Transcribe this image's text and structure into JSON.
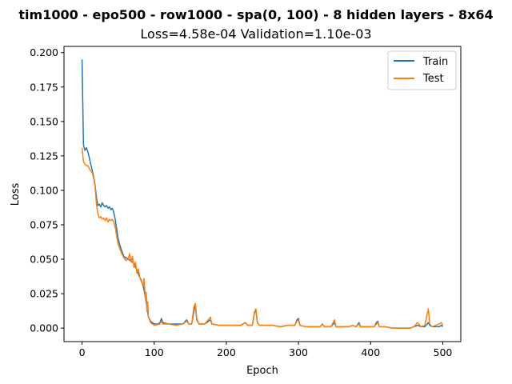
{
  "chart_data": {
    "type": "line",
    "title": "tim1000 - epo500 - row1000 - spa(0, 100) - 8 hidden layers - 8x64",
    "subtitle": "Loss=4.58e-04 Validation=1.10e-03",
    "xlabel": "Epoch",
    "ylabel": "Loss",
    "xlim": [
      -25,
      525
    ],
    "ylim": [
      -0.0098,
      0.2045
    ],
    "xticks": [
      0,
      100,
      200,
      300,
      400,
      500
    ],
    "yticks": [
      0.0,
      0.025,
      0.05,
      0.075,
      0.1,
      0.125,
      0.15,
      0.175,
      0.2
    ],
    "ytick_labels": [
      "0.000",
      "0.025",
      "0.050",
      "0.075",
      "0.100",
      "0.125",
      "0.150",
      "0.175",
      "0.200"
    ],
    "grid": false,
    "legend_position": "top-right",
    "series": [
      {
        "name": "Train",
        "color": "#1f77b4",
        "points": [
          [
            0,
            0.195
          ],
          [
            2,
            0.133
          ],
          [
            4,
            0.129
          ],
          [
            6,
            0.131
          ],
          [
            8,
            0.128
          ],
          [
            10,
            0.124
          ],
          [
            12,
            0.119
          ],
          [
            14,
            0.115
          ],
          [
            16,
            0.11
          ],
          [
            18,
            0.104
          ],
          [
            20,
            0.095
          ],
          [
            22,
            0.089
          ],
          [
            24,
            0.09
          ],
          [
            26,
            0.088
          ],
          [
            28,
            0.091
          ],
          [
            30,
            0.089
          ],
          [
            32,
            0.088
          ],
          [
            34,
            0.089
          ],
          [
            36,
            0.087
          ],
          [
            38,
            0.088
          ],
          [
            40,
            0.086
          ],
          [
            42,
            0.087
          ],
          [
            44,
            0.084
          ],
          [
            46,
            0.079
          ],
          [
            48,
            0.072
          ],
          [
            50,
            0.065
          ],
          [
            52,
            0.061
          ],
          [
            55,
            0.056
          ],
          [
            58,
            0.052
          ],
          [
            61,
            0.051
          ],
          [
            64,
            0.05
          ],
          [
            67,
            0.049
          ],
          [
            70,
            0.048
          ],
          [
            73,
            0.046
          ],
          [
            76,
            0.042
          ],
          [
            79,
            0.038
          ],
          [
            82,
            0.035
          ],
          [
            85,
            0.03
          ],
          [
            88,
            0.022
          ],
          [
            90,
            0.015
          ],
          [
            92,
            0.008
          ],
          [
            95,
            0.005
          ],
          [
            100,
            0.003
          ],
          [
            105,
            0.003
          ],
          [
            108,
            0.004
          ],
          [
            110,
            0.007
          ],
          [
            112,
            0.004
          ],
          [
            120,
            0.003
          ],
          [
            130,
            0.003
          ],
          [
            140,
            0.003
          ],
          [
            145,
            0.006
          ],
          [
            148,
            0.003
          ],
          [
            152,
            0.003
          ],
          [
            155,
            0.012
          ],
          [
            157,
            0.017
          ],
          [
            159,
            0.006
          ],
          [
            162,
            0.003
          ],
          [
            170,
            0.003
          ],
          [
            178,
            0.006
          ],
          [
            180,
            0.003
          ],
          [
            190,
            0.002
          ],
          [
            200,
            0.002
          ],
          [
            210,
            0.002
          ],
          [
            220,
            0.002
          ],
          [
            226,
            0.004
          ],
          [
            230,
            0.002
          ],
          [
            236,
            0.002
          ],
          [
            239,
            0.011
          ],
          [
            241,
            0.013
          ],
          [
            243,
            0.004
          ],
          [
            246,
            0.002
          ],
          [
            255,
            0.002
          ],
          [
            265,
            0.002
          ],
          [
            275,
            0.001
          ],
          [
            285,
            0.002
          ],
          [
            295,
            0.002
          ],
          [
            298,
            0.006
          ],
          [
            300,
            0.007
          ],
          [
            302,
            0.002
          ],
          [
            310,
            0.001
          ],
          [
            320,
            0.001
          ],
          [
            330,
            0.001
          ],
          [
            333,
            0.003
          ],
          [
            336,
            0.001
          ],
          [
            345,
            0.001
          ],
          [
            350,
            0.004
          ],
          [
            352,
            0.001
          ],
          [
            360,
            0.001
          ],
          [
            370,
            0.001
          ],
          [
            375,
            0.002
          ],
          [
            380,
            0.001
          ],
          [
            384,
            0.004
          ],
          [
            386,
            0.001
          ],
          [
            395,
            0.001
          ],
          [
            405,
            0.001
          ],
          [
            408,
            0.004
          ],
          [
            410,
            0.005
          ],
          [
            412,
            0.001
          ],
          [
            420,
            0.001
          ],
          [
            430,
            0.0
          ],
          [
            440,
            0.0
          ],
          [
            450,
            0.0
          ],
          [
            455,
            0.0
          ],
          [
            460,
            0.001
          ],
          [
            465,
            0.002
          ],
          [
            470,
            0.001
          ],
          [
            475,
            0.001
          ],
          [
            480,
            0.004
          ],
          [
            482,
            0.002
          ],
          [
            485,
            0.001
          ],
          [
            490,
            0.001
          ],
          [
            495,
            0.001
          ],
          [
            498,
            0.002
          ],
          [
            500,
            0.001
          ]
        ]
      },
      {
        "name": "Test",
        "color": "#ff7f0e",
        "points": [
          [
            0,
            0.131
          ],
          [
            2,
            0.121
          ],
          [
            4,
            0.119
          ],
          [
            6,
            0.118
          ],
          [
            8,
            0.118
          ],
          [
            10,
            0.116
          ],
          [
            12,
            0.114
          ],
          [
            14,
            0.113
          ],
          [
            16,
            0.109
          ],
          [
            18,
            0.103
          ],
          [
            20,
            0.09
          ],
          [
            22,
            0.083
          ],
          [
            24,
            0.08
          ],
          [
            26,
            0.081
          ],
          [
            28,
            0.079
          ],
          [
            30,
            0.08
          ],
          [
            32,
            0.078
          ],
          [
            34,
            0.08
          ],
          [
            36,
            0.077
          ],
          [
            38,
            0.079
          ],
          [
            40,
            0.078
          ],
          [
            42,
            0.079
          ],
          [
            44,
            0.077
          ],
          [
            46,
            0.073
          ],
          [
            48,
            0.067
          ],
          [
            50,
            0.061
          ],
          [
            52,
            0.058
          ],
          [
            55,
            0.054
          ],
          [
            58,
            0.051
          ],
          [
            61,
            0.049
          ],
          [
            64,
            0.05
          ],
          [
            66,
            0.054
          ],
          [
            68,
            0.048
          ],
          [
            70,
            0.052
          ],
          [
            72,
            0.044
          ],
          [
            74,
            0.048
          ],
          [
            76,
            0.04
          ],
          [
            78,
            0.043
          ],
          [
            80,
            0.037
          ],
          [
            82,
            0.034
          ],
          [
            85,
            0.031
          ],
          [
            86,
            0.036
          ],
          [
            88,
            0.02
          ],
          [
            89,
            0.026
          ],
          [
            90,
            0.012
          ],
          [
            91,
            0.019
          ],
          [
            92,
            0.008
          ],
          [
            95,
            0.004
          ],
          [
            100,
            0.002
          ],
          [
            108,
            0.003
          ],
          [
            110,
            0.005
          ],
          [
            112,
            0.003
          ],
          [
            120,
            0.003
          ],
          [
            130,
            0.002
          ],
          [
            140,
            0.003
          ],
          [
            145,
            0.005
          ],
          [
            148,
            0.003
          ],
          [
            152,
            0.003
          ],
          [
            155,
            0.015
          ],
          [
            157,
            0.018
          ],
          [
            159,
            0.007
          ],
          [
            162,
            0.003
          ],
          [
            170,
            0.003
          ],
          [
            178,
            0.008
          ],
          [
            180,
            0.003
          ],
          [
            190,
            0.002
          ],
          [
            200,
            0.002
          ],
          [
            210,
            0.002
          ],
          [
            220,
            0.002
          ],
          [
            226,
            0.004
          ],
          [
            230,
            0.002
          ],
          [
            236,
            0.002
          ],
          [
            239,
            0.012
          ],
          [
            241,
            0.014
          ],
          [
            243,
            0.004
          ],
          [
            246,
            0.002
          ],
          [
            255,
            0.002
          ],
          [
            265,
            0.002
          ],
          [
            275,
            0.001
          ],
          [
            285,
            0.002
          ],
          [
            295,
            0.002
          ],
          [
            298,
            0.005
          ],
          [
            300,
            0.006
          ],
          [
            302,
            0.002
          ],
          [
            310,
            0.001
          ],
          [
            320,
            0.001
          ],
          [
            330,
            0.001
          ],
          [
            333,
            0.003
          ],
          [
            336,
            0.001
          ],
          [
            345,
            0.001
          ],
          [
            350,
            0.006
          ],
          [
            352,
            0.001
          ],
          [
            360,
            0.001
          ],
          [
            370,
            0.001
          ],
          [
            375,
            0.002
          ],
          [
            380,
            0.001
          ],
          [
            384,
            0.003
          ],
          [
            386,
            0.001
          ],
          [
            395,
            0.001
          ],
          [
            405,
            0.001
          ],
          [
            408,
            0.003
          ],
          [
            410,
            0.004
          ],
          [
            412,
            0.001
          ],
          [
            420,
            0.001
          ],
          [
            430,
            0.0
          ],
          [
            440,
            0.0
          ],
          [
            450,
            0.0
          ],
          [
            455,
            0.0
          ],
          [
            460,
            0.001
          ],
          [
            465,
            0.004
          ],
          [
            470,
            0.001
          ],
          [
            475,
            0.002
          ],
          [
            480,
            0.014
          ],
          [
            482,
            0.003
          ],
          [
            485,
            0.001
          ],
          [
            490,
            0.002
          ],
          [
            495,
            0.003
          ],
          [
            498,
            0.004
          ],
          [
            500,
            0.002
          ]
        ]
      }
    ]
  }
}
